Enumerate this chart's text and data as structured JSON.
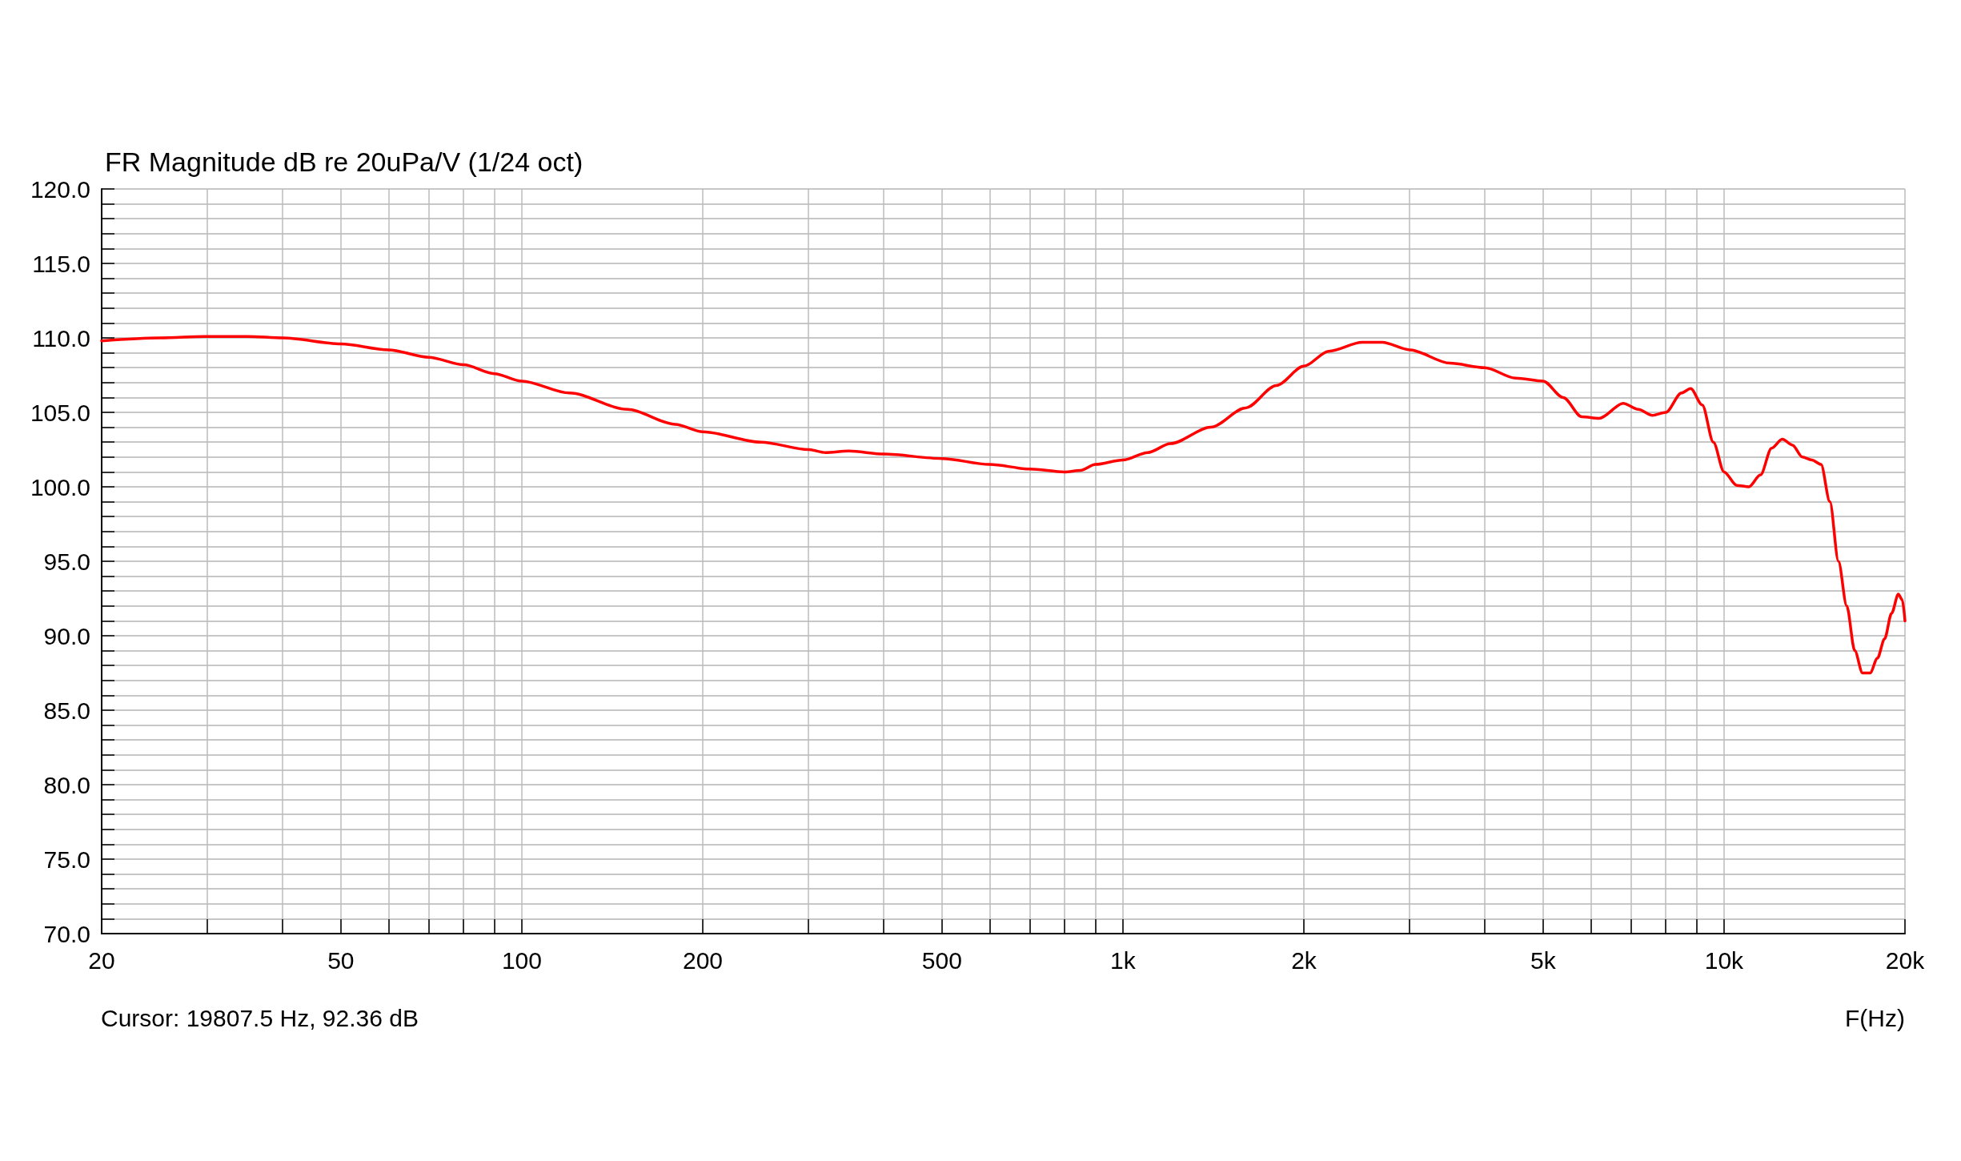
{
  "chart_data": {
    "type": "line",
    "title": "FR Magnitude dB re 20uPa/V (1/24 oct)",
    "xlabel": "F(Hz)",
    "annotations": [
      "Cursor: 19807.5 Hz, 92.36 dB"
    ],
    "log": "x",
    "grid": true,
    "marker": "none",
    "line_style": "solid",
    "xlim": [
      20,
      20000
    ],
    "ylim": [
      70,
      120
    ],
    "xticks": [
      20,
      {
        "value": 30,
        "label": null
      },
      {
        "value": 40,
        "label": null
      },
      50,
      {
        "value": 60,
        "label": null
      },
      {
        "value": 70,
        "label": null
      },
      {
        "value": 80,
        "label": null
      },
      {
        "value": 90,
        "label": null
      },
      100,
      200,
      {
        "value": 300,
        "label": null
      },
      {
        "value": 400,
        "label": null
      },
      500,
      {
        "value": 600,
        "label": null
      },
      {
        "value": 700,
        "label": null
      },
      {
        "value": 800,
        "label": null
      },
      {
        "value": 900,
        "label": null
      },
      {
        "value": 1000,
        "label": "1k"
      },
      {
        "value": 2000,
        "label": "2k"
      },
      {
        "value": 3000,
        "label": null
      },
      {
        "value": 4000,
        "label": null
      },
      {
        "value": 5000,
        "label": "5k"
      },
      {
        "value": 6000,
        "label": null
      },
      {
        "value": 7000,
        "label": null
      },
      {
        "value": 8000,
        "label": null
      },
      {
        "value": 9000,
        "label": null
      },
      {
        "value": 10000,
        "label": "10k"
      },
      {
        "value": 20000,
        "label": "20k"
      }
    ],
    "yticks": [
      {
        "value": 70,
        "label": "70.0"
      },
      {
        "value": 71,
        "label": null
      },
      {
        "value": 72,
        "label": null
      },
      {
        "value": 73,
        "label": null
      },
      {
        "value": 74,
        "label": null
      },
      {
        "value": 75,
        "label": "75.0"
      },
      {
        "value": 76,
        "label": null
      },
      {
        "value": 77,
        "label": null
      },
      {
        "value": 78,
        "label": null
      },
      {
        "value": 79,
        "label": null
      },
      {
        "value": 80,
        "label": "80.0"
      },
      {
        "value": 81,
        "label": null
      },
      {
        "value": 82,
        "label": null
      },
      {
        "value": 83,
        "label": null
      },
      {
        "value": 84,
        "label": null
      },
      {
        "value": 85,
        "label": "85.0"
      },
      {
        "value": 86,
        "label": null
      },
      {
        "value": 87,
        "label": null
      },
      {
        "value": 88,
        "label": null
      },
      {
        "value": 89,
        "label": null
      },
      {
        "value": 90,
        "label": "90.0"
      },
      {
        "value": 91,
        "label": null
      },
      {
        "value": 92,
        "label": null
      },
      {
        "value": 93,
        "label": null
      },
      {
        "value": 94,
        "label": null
      },
      {
        "value": 95,
        "label": "95.0"
      },
      {
        "value": 96,
        "label": null
      },
      {
        "value": 97,
        "label": null
      },
      {
        "value": 98,
        "label": null
      },
      {
        "value": 99,
        "label": null
      },
      {
        "value": 100,
        "label": "100.0"
      },
      {
        "value": 101,
        "label": null
      },
      {
        "value": 102,
        "label": null
      },
      {
        "value": 103,
        "label": null
      },
      {
        "value": 104,
        "label": null
      },
      {
        "value": 105,
        "label": "105.0"
      },
      {
        "value": 106,
        "label": null
      },
      {
        "value": 107,
        "label": null
      },
      {
        "value": 108,
        "label": null
      },
      {
        "value": 109,
        "label": null
      },
      {
        "value": 110,
        "label": "110.0"
      },
      {
        "value": 111,
        "label": null
      },
      {
        "value": 112,
        "label": null
      },
      {
        "value": 113,
        "label": null
      },
      {
        "value": 114,
        "label": null
      },
      {
        "value": 115,
        "label": "115.0"
      },
      {
        "value": 116,
        "label": null
      },
      {
        "value": 117,
        "label": null
      },
      {
        "value": 118,
        "label": null
      },
      {
        "value": 119,
        "label": null
      },
      {
        "value": 120,
        "label": "120.0"
      }
    ],
    "x": [
      20,
      25,
      30,
      35,
      40,
      50,
      60,
      70,
      80,
      90,
      100,
      120,
      150,
      180,
      200,
      250,
      300,
      320,
      350,
      400,
      500,
      600,
      700,
      800,
      850,
      900,
      1000,
      1100,
      1200,
      1400,
      1600,
      1800,
      2000,
      2200,
      2500,
      2700,
      3000,
      3500,
      4000,
      4500,
      5000,
      5400,
      5800,
      6200,
      6800,
      7200,
      7600,
      8000,
      8500,
      8800,
      9200,
      9600,
      10000,
      10500,
      11000,
      11500,
      12000,
      12500,
      13000,
      13500,
      14000,
      14500,
      15000,
      15500,
      16000,
      16500,
      17000,
      17500,
      18000,
      18500,
      19000,
      19500,
      19800,
      20000
    ],
    "series": [
      {
        "color": "#ff0000",
        "values": [
          109.8,
          110.0,
          110.1,
          110.1,
          110.0,
          109.6,
          109.2,
          108.7,
          108.2,
          107.6,
          107.1,
          106.3,
          105.2,
          104.2,
          103.7,
          103.0,
          102.5,
          102.3,
          102.4,
          102.2,
          101.9,
          101.5,
          101.2,
          101.0,
          101.1,
          101.5,
          101.8,
          102.3,
          102.9,
          104.0,
          105.3,
          106.8,
          108.1,
          109.1,
          109.7,
          109.7,
          109.2,
          108.3,
          108.0,
          107.3,
          107.1,
          106.0,
          104.7,
          104.6,
          105.6,
          105.2,
          104.8,
          105.0,
          106.3,
          106.6,
          105.5,
          103.0,
          101.0,
          100.1,
          100.0,
          100.8,
          102.6,
          103.2,
          102.8,
          102.0,
          101.8,
          101.5,
          99.0,
          95.0,
          92.0,
          89.0,
          87.5,
          87.5,
          88.5,
          89.8,
          91.5,
          92.8,
          92.4,
          91.0
        ]
      }
    ]
  }
}
